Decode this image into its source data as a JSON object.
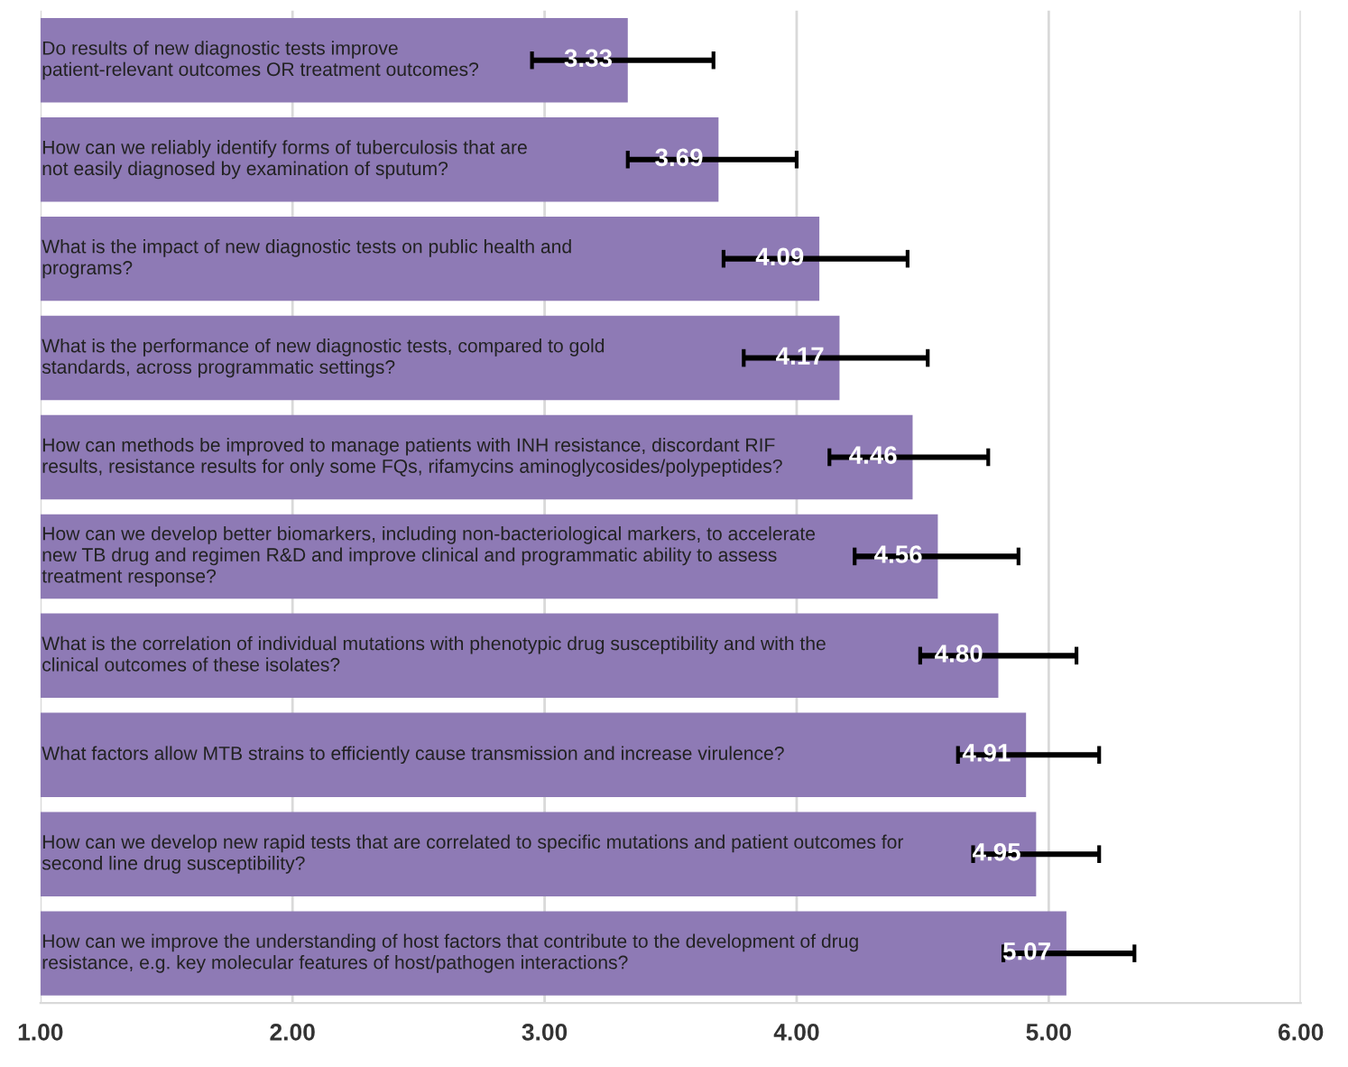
{
  "chart_data": {
    "type": "bar",
    "orientation": "horizontal",
    "categories": [
      "Do results of new diagnostic tests improve\npatient-relevant outcomes OR treatment outcomes?",
      "How can we reliably identify forms of tuberculosis that are\nnot easily diagnosed by examination of sputum?",
      "What is the impact of new diagnostic tests on public health and\nprograms?",
      "What is the performance of new diagnostic tests, compared to gold\nstandards, across programmatic settings?",
      "How can methods be improved to manage patients with INH resistance, discordant RIF\nresults, resistance results for only some FQs, rifamycins aminoglycosides/polypeptides?",
      "How can we develop better biomarkers, including non-bacteriological markers, to accelerate\nnew TB drug and regimen R&D and improve clinical and programmatic ability to assess\ntreatment response?",
      "What is the correlation of individual mutations with phenotypic drug susceptibility and with the\nclinical outcomes of these isolates?",
      "What factors allow MTB strains to efficiently cause transmission and increase virulence?",
      "How can we develop new rapid tests that are correlated to specific mutations and patient outcomes for\nsecond line drug susceptibility?",
      "How can we improve the understanding of host factors that contribute to the development of drug\nresistance, e.g. key molecular features of host/pathogen interactions?"
    ],
    "values": [
      3.33,
      3.69,
      4.09,
      4.17,
      4.46,
      4.56,
      4.8,
      4.91,
      4.95,
      5.07
    ],
    "value_labels": [
      "3.33",
      "3.69",
      "4.09",
      "4.17",
      "4.46",
      "4.56",
      "4.80",
      "4.91",
      "4.95",
      "5.07"
    ],
    "errors": [
      [
        2.95,
        3.67
      ],
      [
        3.33,
        4.0
      ],
      [
        3.71,
        4.44
      ],
      [
        3.79,
        4.52
      ],
      [
        4.13,
        4.76
      ],
      [
        4.23,
        4.88
      ],
      [
        4.49,
        5.11
      ],
      [
        4.64,
        5.2
      ],
      [
        4.7,
        5.2
      ],
      [
        4.82,
        5.34
      ]
    ],
    "color": "#8e7ab5",
    "xlim": [
      1,
      6
    ],
    "xticks": [
      {
        "value": 1,
        "label": "1.00"
      },
      {
        "value": 2,
        "label": "2.00"
      },
      {
        "value": 3,
        "label": "3.00"
      },
      {
        "value": 4,
        "label": "4.00"
      },
      {
        "value": 5,
        "label": "5.00"
      },
      {
        "value": 6,
        "label": "6.00"
      }
    ],
    "grid": "x"
  }
}
